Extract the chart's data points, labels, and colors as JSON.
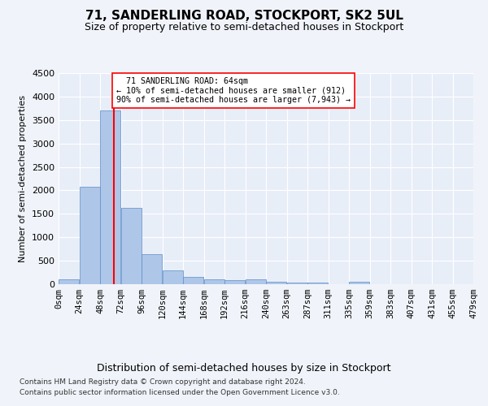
{
  "title": "71, SANDERLING ROAD, STOCKPORT, SK2 5UL",
  "subtitle": "Size of property relative to semi-detached houses in Stockport",
  "xlabel": "Distribution of semi-detached houses by size in Stockport",
  "ylabel": "Number of semi-detached properties",
  "bin_labels": [
    "0sqm",
    "24sqm",
    "48sqm",
    "72sqm",
    "96sqm",
    "120sqm",
    "144sqm",
    "168sqm",
    "192sqm",
    "216sqm",
    "240sqm",
    "263sqm",
    "287sqm",
    "311sqm",
    "335sqm",
    "359sqm",
    "383sqm",
    "407sqm",
    "431sqm",
    "455sqm",
    "479sqm"
  ],
  "bar_values": [
    100,
    2080,
    3700,
    1620,
    640,
    290,
    150,
    110,
    80,
    110,
    55,
    40,
    30,
    5,
    50,
    0,
    0,
    0,
    0,
    0
  ],
  "bar_color": "#aec6e8",
  "bar_edge_color": "#5b8dc8",
  "property_line_x": 64,
  "property_line_label": "71 SANDERLING ROAD: 64sqm",
  "percentile_smaller": 10,
  "count_smaller": 912,
  "percentile_larger": 90,
  "count_larger": 7943,
  "ylim": [
    0,
    4500
  ],
  "yticks": [
    0,
    500,
    1000,
    1500,
    2000,
    2500,
    3000,
    3500,
    4000,
    4500
  ],
  "footer_line1": "Contains HM Land Registry data © Crown copyright and database right 2024.",
  "footer_line2": "Contains public sector information licensed under the Open Government Licence v3.0.",
  "background_color": "#f0f4fa",
  "plot_bg_color": "#e8eef8"
}
